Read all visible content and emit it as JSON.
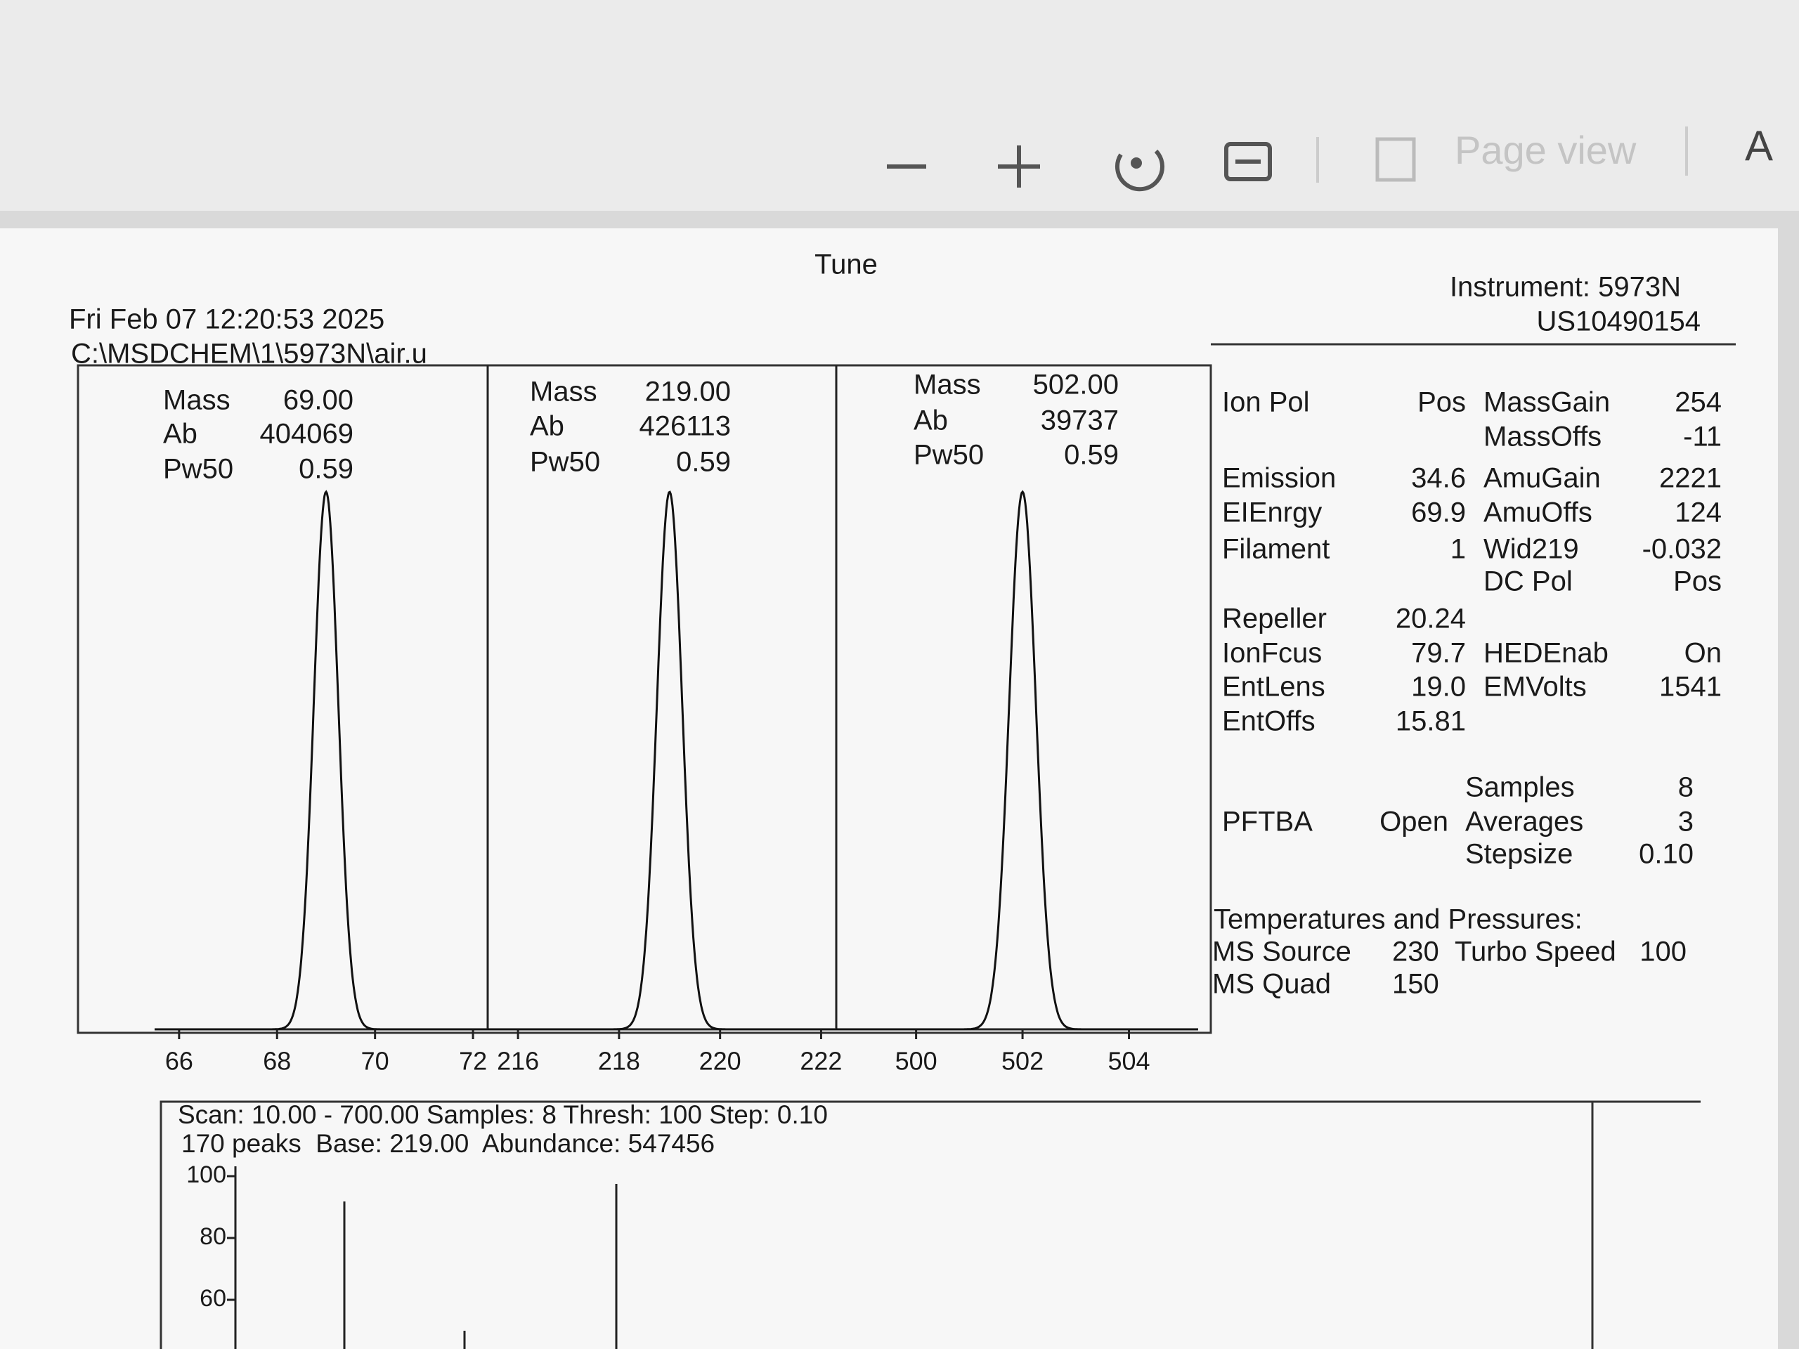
{
  "toolbar": {
    "page_view": "Page view"
  },
  "report": {
    "title": "Tune",
    "date": "Fri Feb 07 12:20:53 2025",
    "path": "C:\\MSDCHEM\\1\\5973N\\air.u",
    "instrument": "Instrument: 5973N",
    "serial": "US10490154"
  },
  "profiles": [
    {
      "mass_label": "Mass",
      "mass": "69.00",
      "ab_label": "Ab",
      "ab": "404069",
      "pw50_label": "Pw50",
      "pw50": "0.59",
      "xlim": [
        65.5,
        72.3
      ],
      "xticks": [
        66,
        68,
        70,
        72
      ]
    },
    {
      "mass_label": "Mass",
      "mass": "219.00",
      "ab_label": "Ab",
      "ab": "426113",
      "pw50_label": "Pw50",
      "pw50": "0.59",
      "xlim": [
        215.4,
        222.3
      ],
      "xticks": [
        216,
        218,
        220,
        222
      ]
    },
    {
      "mass_label": "Mass",
      "mass": "502.00",
      "ab_label": "Ab",
      "ab": "39737",
      "pw50_label": "Pw50",
      "pw50": "0.59",
      "xlim": [
        498.5,
        505.3
      ],
      "xticks": [
        500,
        502,
        504
      ]
    }
  ],
  "parameters": [
    {
      "left": {
        "label": "Ion Pol",
        "value": "Pos"
      },
      "right": {
        "label": "MassGain",
        "value": "254"
      }
    },
    {
      "right": {
        "label": "MassOffs",
        "value": "-11"
      }
    },
    {
      "left": {
        "label": "Emission",
        "value": "34.6"
      },
      "right": {
        "label": "AmuGain",
        "value": "2221"
      }
    },
    {
      "left": {
        "label": "EIEnrgy",
        "value": "69.9"
      },
      "right": {
        "label": "AmuOffs",
        "value": "124"
      }
    },
    {
      "left": {
        "label": "Filament",
        "value": "1"
      },
      "right": {
        "label": "Wid219",
        "value": "-0.032"
      }
    },
    {
      "right": {
        "label": "DC Pol",
        "value": "Pos"
      }
    },
    {
      "left": {
        "label": "Repeller",
        "value": "20.24"
      }
    },
    {
      "left": {
        "label": "IonFcus",
        "value": "79.7"
      },
      "right": {
        "label": "HEDEnab",
        "value": "On"
      }
    },
    {
      "left": {
        "label": "EntLens",
        "value": "19.0"
      },
      "right": {
        "label": "EMVolts",
        "value": "1541"
      }
    },
    {
      "left": {
        "label": "EntOffs",
        "value": "15.81"
      }
    },
    {
      "right": {
        "label": "Samples",
        "value": "8"
      }
    },
    {
      "left": {
        "label": "PFTBA",
        "value": "Open"
      },
      "right": {
        "label": "Averages",
        "value": "3"
      }
    },
    {
      "right": {
        "label": "Stepsize",
        "value": "0.10"
      }
    }
  ],
  "temperatures": {
    "heading": "Temperatures and Pressures:",
    "rows": [
      {
        "label": "MS Source",
        "value": "230",
        "extra_label": "Turbo Speed",
        "extra_value": "100"
      },
      {
        "label": "MS Quad",
        "value": "150"
      }
    ]
  },
  "spectrum": {
    "scan": "Scan: 10.00 - 700.00 Samples: 8 Thresh: 100 Step: 0.10",
    "summary": "170 peaks  Base: 219.00  Abundance: 547456",
    "ylim": [
      0,
      100
    ],
    "yticks": [
      100,
      80,
      60
    ]
  }
}
